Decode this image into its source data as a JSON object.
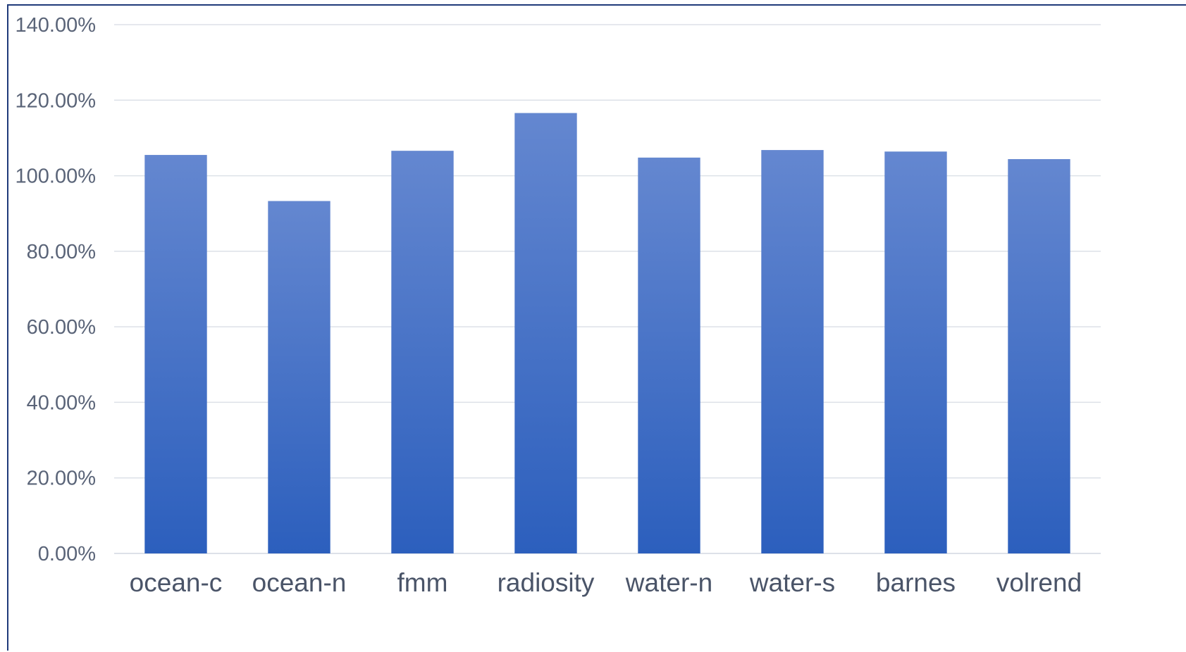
{
  "colors": {
    "bar_top": "#6487d0",
    "bar_bottom": "#2c5fbd",
    "grid": "#dde1e8",
    "frame": "#1f3a7a"
  },
  "chart_data": {
    "type": "bar",
    "title": "",
    "xlabel": "",
    "ylabel": "",
    "categories": [
      "ocean-c",
      "ocean-n",
      "fmm",
      "radiosity",
      "water-n",
      "water-s",
      "barnes",
      "volrend"
    ],
    "series": [
      {
        "values": [
          105.5,
          93.3,
          106.6,
          116.6,
          104.8,
          106.8,
          106.4,
          104.4
        ]
      }
    ],
    "ylim": [
      0,
      140
    ],
    "yticks": [
      0,
      20,
      40,
      60,
      80,
      100,
      120,
      140
    ],
    "ytick_labels": [
      "0.00%",
      "20.00%",
      "40.00%",
      "60.00%",
      "80.00%",
      "100.00%",
      "120.00%",
      "140.00%"
    ],
    "grid": true,
    "legend": "none"
  }
}
